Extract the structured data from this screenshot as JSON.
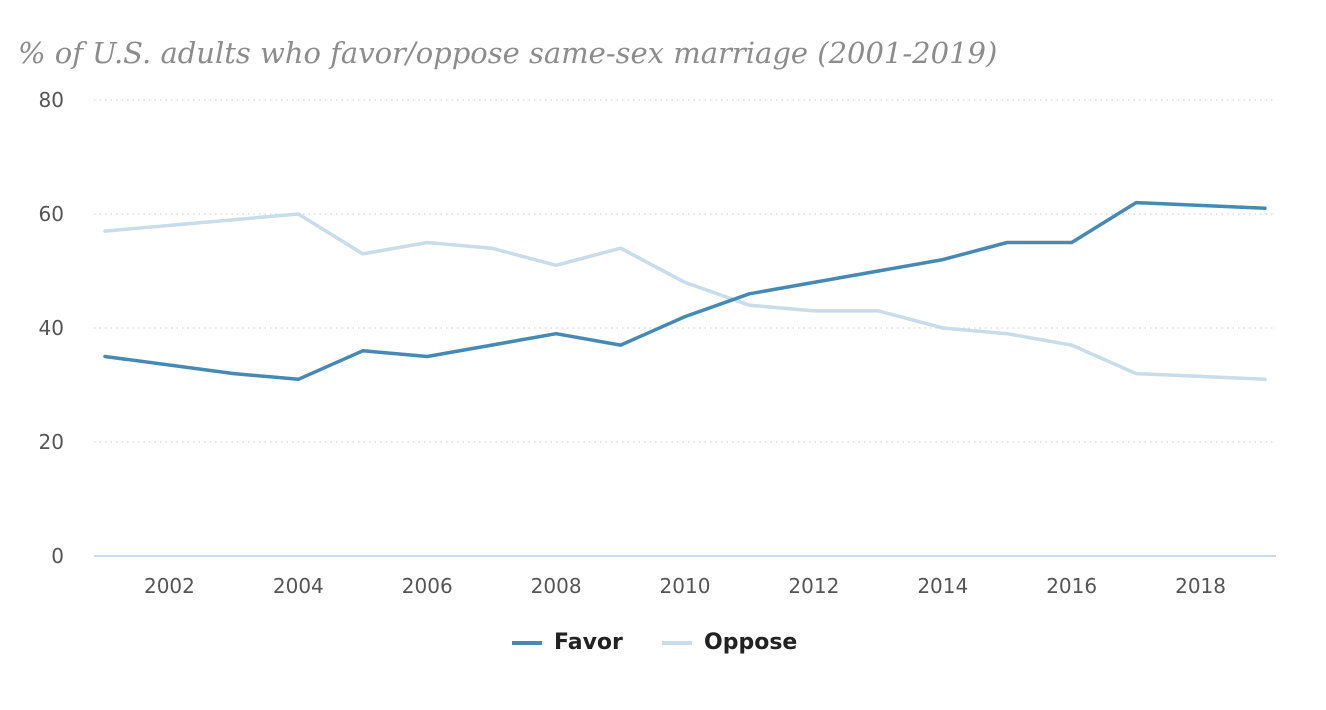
{
  "chart_data": {
    "type": "line",
    "title": "% of U.S. adults who favor/oppose same-sex marriage (2001-2019)",
    "x": [
      2001,
      2003,
      2004,
      2005,
      2006,
      2007,
      2008,
      2009,
      2010,
      2011,
      2012,
      2013,
      2014,
      2015,
      2016,
      2017,
      2019
    ],
    "series": [
      {
        "name": "Favor",
        "color": "#4589b4",
        "values": [
          35,
          32,
          31,
          36,
          35,
          37,
          39,
          37,
          42,
          46,
          48,
          50,
          52,
          55,
          55,
          62,
          61
        ]
      },
      {
        "name": "Oppose",
        "color": "#c8dcea",
        "values": [
          57,
          59,
          60,
          53,
          55,
          54,
          51,
          54,
          48,
          44,
          43,
          43,
          40,
          39,
          37,
          32,
          31
        ]
      }
    ],
    "xlim": [
      2001,
      2019
    ],
    "ylim": [
      0,
      80
    ],
    "yticks": [
      "0",
      "20",
      "40",
      "60",
      "80"
    ],
    "xticks": [
      "2002",
      "2004",
      "2006",
      "2008",
      "2010",
      "2012",
      "2014",
      "2016",
      "2018"
    ],
    "grid": true,
    "legend_position": "bottom-center"
  }
}
